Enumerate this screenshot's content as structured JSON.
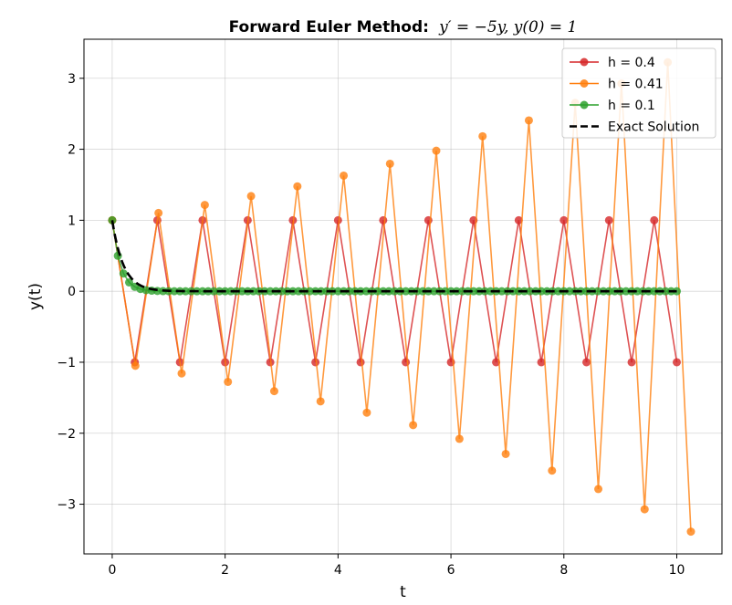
{
  "chart_data": {
    "type": "line",
    "title_bold": "Forward Euler Method:",
    "title_math": "y′ = −5y,  y(0) = 1",
    "xlabel": "t",
    "ylabel": "y(t)",
    "xlim": [
      -0.5,
      10.8
    ],
    "ylim": [
      -3.7,
      3.55
    ],
    "xticks": [
      0,
      2,
      4,
      6,
      8,
      10
    ],
    "xtick_labels": [
      "0",
      "2",
      "4",
      "6",
      "8",
      "10"
    ],
    "yticks": [
      3,
      2,
      1,
      0,
      -1,
      -2,
      -3
    ],
    "ytick_labels": [
      "3",
      "2",
      "1",
      "0",
      "−1",
      "−2",
      "−3"
    ],
    "grid": true,
    "legend_position": "top-right",
    "series": [
      {
        "name": "h = 0.4",
        "color": "#d62728",
        "step": 0.4,
        "values": [
          1,
          -1,
          1,
          -1,
          1,
          -1,
          1,
          -1,
          1,
          -1,
          1,
          -1,
          1,
          -1,
          1,
          -1,
          1,
          -1,
          1,
          -1,
          1,
          -1,
          1,
          -1,
          1,
          -1
        ]
      },
      {
        "name": "h = 0.41",
        "color": "#ff7f0e",
        "step": 0.41,
        "values": [
          1,
          -1.05,
          1.1025,
          -1.1576,
          1.2155,
          -1.2763,
          1.3401,
          -1.4071,
          1.4775,
          -1.5513,
          1.6289,
          -1.7103,
          1.7959,
          -1.8856,
          1.9799,
          -2.0789,
          2.1829,
          -2.292,
          2.4066,
          -2.527,
          2.6533,
          -2.786,
          2.9253,
          -3.0715,
          3.2251,
          -3.3864
        ]
      },
      {
        "name": "h = 0.1",
        "color": "#2ca02c",
        "step": 0.1,
        "values": [
          1,
          0.5,
          0.25,
          0.125,
          0.0625,
          0.03125,
          0.015625,
          0.0078125,
          0.0039063,
          0.0019531,
          0.0009766,
          0.0004883,
          0.0002441,
          0.0001221,
          6.1e-05,
          3.05e-05,
          1.53e-05,
          7.6e-06,
          3.8e-06,
          1.9e-06,
          1e-06,
          0,
          0,
          0,
          0,
          0,
          0,
          0,
          0,
          0,
          0,
          0,
          0,
          0,
          0,
          0,
          0,
          0,
          0,
          0,
          0,
          0,
          0,
          0,
          0,
          0,
          0,
          0,
          0,
          0,
          0,
          0,
          0,
          0,
          0,
          0,
          0,
          0,
          0,
          0,
          0,
          0,
          0,
          0,
          0,
          0,
          0,
          0,
          0,
          0,
          0,
          0,
          0,
          0,
          0,
          0,
          0,
          0,
          0,
          0,
          0,
          0,
          0,
          0,
          0,
          0,
          0,
          0,
          0,
          0,
          0,
          0,
          0,
          0,
          0,
          0,
          0,
          0,
          0,
          0,
          0
        ]
      }
    ],
    "exact": {
      "name": "Exact Solution",
      "color": "#000000",
      "formula": "exp(-5t)",
      "t_range": [
        0,
        10
      ]
    }
  }
}
